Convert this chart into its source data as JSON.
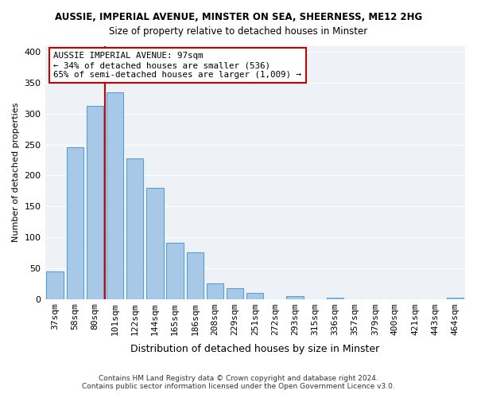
{
  "title": "AUSSIE, IMPERIAL AVENUE, MINSTER ON SEA, SHEERNESS, ME12 2HG",
  "subtitle": "Size of property relative to detached houses in Minster",
  "xlabel": "Distribution of detached houses by size in Minster",
  "ylabel": "Number of detached properties",
  "bar_labels": [
    "37sqm",
    "58sqm",
    "80sqm",
    "101sqm",
    "122sqm",
    "144sqm",
    "165sqm",
    "186sqm",
    "208sqm",
    "229sqm",
    "251sqm",
    "272sqm",
    "293sqm",
    "315sqm",
    "336sqm",
    "357sqm",
    "379sqm",
    "400sqm",
    "421sqm",
    "443sqm",
    "464sqm"
  ],
  "bar_values": [
    44,
    245,
    313,
    335,
    228,
    180,
    91,
    75,
    25,
    18,
    10,
    0,
    5,
    0,
    2,
    0,
    0,
    0,
    0,
    0,
    2
  ],
  "bar_color": "#a8c8e8",
  "bar_edge_color": "#5a9fd4",
  "ref_line_x": 2.5,
  "ref_line_color": "#cc0000",
  "annotation_title": "AUSSIE IMPERIAL AVENUE: 97sqm",
  "annotation_line1": "← 34% of detached houses are smaller (536)",
  "annotation_line2": "65% of semi-detached houses are larger (1,009) →",
  "ylim": [
    0,
    410
  ],
  "yticks": [
    0,
    50,
    100,
    150,
    200,
    250,
    300,
    350,
    400
  ],
  "footer1": "Contains HM Land Registry data © Crown copyright and database right 2024.",
  "footer2": "Contains public sector information licensed under the Open Government Licence v3.0.",
  "bg_color": "#eef2f7"
}
